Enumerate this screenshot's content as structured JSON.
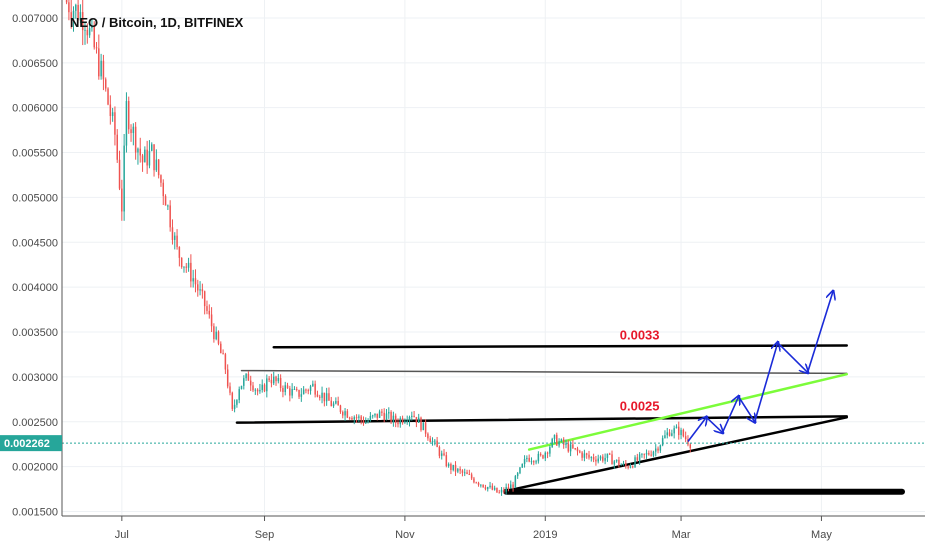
{
  "chart_data": {
    "type": "candlestick",
    "title": "NEO / Bitcoin, 1D, BITFINEX",
    "ylim": [
      0.00145,
      0.0072
    ],
    "y_ticks": [
      "0.007000",
      "0.006500",
      "0.006000",
      "0.005500",
      "0.005000",
      "0.004500",
      "0.004000",
      "0.003500",
      "0.003000",
      "0.002500",
      "0.002000",
      "0.001500"
    ],
    "y_tick_values": [
      0.007,
      0.0065,
      0.006,
      0.0055,
      0.005,
      0.0045,
      0.004,
      0.0035,
      0.003,
      0.0025,
      0.002,
      0.0015
    ],
    "x_ticks": [
      {
        "label": "Jul",
        "date": "2018-07-01"
      },
      {
        "label": "Sep",
        "date": "2018-09-01"
      },
      {
        "label": "Nov",
        "date": "2018-11-01"
      },
      {
        "label": "2019",
        "date": "2019-01-01"
      },
      {
        "label": "Mar",
        "date": "2019-03-01"
      },
      {
        "label": "May",
        "date": "2019-05-01"
      }
    ],
    "xlim": [
      "2018-06-05",
      "2019-06-15"
    ],
    "grid": true,
    "current_price": {
      "label": "0.002262",
      "value": 0.002262
    },
    "price_path": [
      [
        "2018-06-06",
        0.0072
      ],
      [
        "2018-06-15",
        0.007
      ],
      [
        "2018-06-22",
        0.0064
      ],
      [
        "2018-06-28",
        0.0057
      ],
      [
        "2018-07-01",
        0.0049
      ],
      [
        "2018-07-03",
        0.006
      ],
      [
        "2018-07-05",
        0.0058
      ],
      [
        "2018-07-10",
        0.0054
      ],
      [
        "2018-07-14",
        0.0055
      ],
      [
        "2018-07-20",
        0.005
      ],
      [
        "2018-07-25",
        0.0044
      ],
      [
        "2018-08-01",
        0.0041
      ],
      [
        "2018-08-06",
        0.0038
      ],
      [
        "2018-08-10",
        0.0035
      ],
      [
        "2018-08-15",
        0.0031
      ],
      [
        "2018-08-18",
        0.0026
      ],
      [
        "2018-08-21",
        0.0029
      ],
      [
        "2018-08-25",
        0.003
      ],
      [
        "2018-08-30",
        0.0028
      ],
      [
        "2018-09-03",
        0.003
      ],
      [
        "2018-09-08",
        0.0029
      ],
      [
        "2018-09-15",
        0.0028
      ],
      [
        "2018-09-22",
        0.0029
      ],
      [
        "2018-09-30",
        0.0027
      ],
      [
        "2018-10-07",
        0.0026
      ],
      [
        "2018-10-15",
        0.0025
      ],
      [
        "2018-10-22",
        0.0026
      ],
      [
        "2018-10-28",
        0.0025
      ],
      [
        "2018-11-04",
        0.0026
      ],
      [
        "2018-11-10",
        0.0024
      ],
      [
        "2018-11-15",
        0.0022
      ],
      [
        "2018-11-20",
        0.002
      ],
      [
        "2018-11-28",
        0.0019
      ],
      [
        "2018-12-05",
        0.0018
      ],
      [
        "2018-12-12",
        0.0017
      ],
      [
        "2018-12-18",
        0.0018
      ],
      [
        "2018-12-24",
        0.0021
      ],
      [
        "2018-12-30",
        0.0021
      ],
      [
        "2019-01-05",
        0.0023
      ],
      [
        "2019-01-12",
        0.0022
      ],
      [
        "2019-01-20",
        0.0021
      ],
      [
        "2019-01-28",
        0.0021
      ],
      [
        "2019-02-05",
        0.002
      ],
      [
        "2019-02-12",
        0.0021
      ],
      [
        "2019-02-18",
        0.0022
      ],
      [
        "2019-02-24",
        0.0024
      ],
      [
        "2019-02-28",
        0.0024
      ],
      [
        "2019-03-05",
        0.00226
      ]
    ],
    "annotations": [
      {
        "text": "0.0033",
        "date": "2019-02-11",
        "value": 0.00335
      },
      {
        "text": "0.0025",
        "date": "2019-02-11",
        "value": 0.00256
      }
    ],
    "drawings": {
      "lines_black": [
        [
          [
            "2018-08-20",
            0.00249
          ],
          [
            "2019-05-12",
            0.00256
          ]
        ],
        [
          [
            "2018-09-05",
            0.00333
          ],
          [
            "2019-05-12",
            0.00335
          ]
        ],
        [
          [
            "2018-12-15",
            0.00173
          ],
          [
            "2019-05-12",
            0.00255
          ]
        ],
        [
          [
            "2018-12-15",
            0.00172
          ],
          [
            "2019-06-05",
            0.00172
          ]
        ]
      ],
      "lines_gray": [
        [
          [
            "2018-08-22",
            0.00307
          ],
          [
            "2019-05-12",
            0.00304
          ]
        ]
      ],
      "lines_green": [
        [
          [
            "2018-12-25",
            0.00219
          ],
          [
            "2019-05-12",
            0.00303
          ]
        ]
      ],
      "projection_blue": [
        [
          "2019-03-04",
          0.00228
        ],
        [
          "2019-03-12",
          0.00255
        ],
        [
          "2019-03-19",
          0.00238
        ],
        [
          "2019-03-26",
          0.00278
        ],
        [
          "2019-04-02",
          0.0025
        ],
        [
          "2019-04-12",
          0.00338
        ],
        [
          "2019-04-25",
          0.00305
        ],
        [
          "2019-05-06",
          0.00395
        ]
      ]
    }
  }
}
